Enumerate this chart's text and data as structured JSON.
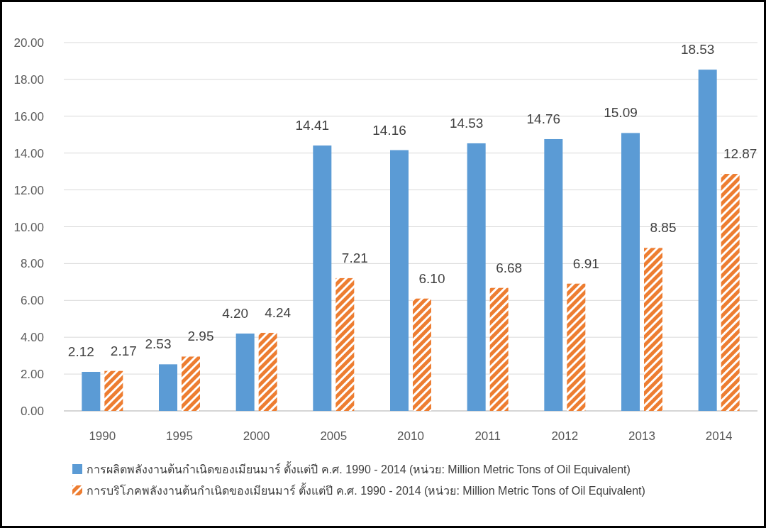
{
  "chart_data": {
    "type": "bar",
    "categories": [
      "1990",
      "1995",
      "2000",
      "2005",
      "2010",
      "2011",
      "2012",
      "2013",
      "2014"
    ],
    "series": [
      {
        "name": "การผลิตพลังงานต้นกำเนิดของเมียนมาร์ ตั้งแต่ปี ค.ศ. 1990 - 2014 (หน่วย: Million Metric Tons of Oil Equivalent)",
        "color": "#5b9bd5",
        "values": [
          2.12,
          2.53,
          4.2,
          14.41,
          14.16,
          14.53,
          14.76,
          15.09,
          18.53
        ],
        "value_labels": [
          "2.12",
          "2.53",
          "4.20",
          "14.41",
          "14.16",
          "14.53",
          "14.76",
          "15.09",
          "18.53"
        ]
      },
      {
        "name": "การบริโภคพลังงานต้นกำเนิดของเมียนมาร์ ตั้งแต่ปี ค.ศ. 1990 - 2014 (หน่วย: Million Metric Tons of Oil Equivalent)",
        "color": "#ed7d31",
        "values": [
          2.17,
          2.95,
          4.24,
          7.21,
          6.1,
          6.68,
          6.91,
          8.85,
          12.87
        ],
        "value_labels": [
          "2.17",
          "2.95",
          "4.24",
          "7.21",
          "6.10",
          "6.68",
          "6.91",
          "8.85",
          "12.87"
        ]
      }
    ],
    "ylim": [
      0,
      20
    ],
    "yticks": [
      {
        "value": 0,
        "label": "0.00"
      },
      {
        "value": 2,
        "label": "2.00"
      },
      {
        "value": 4,
        "label": "4.00"
      },
      {
        "value": 6,
        "label": "6.00"
      },
      {
        "value": 8,
        "label": "8.00"
      },
      {
        "value": 10,
        "label": "10.00"
      },
      {
        "value": 12,
        "label": "12.00"
      },
      {
        "value": 14,
        "label": "14.00"
      },
      {
        "value": 16,
        "label": "16.00"
      },
      {
        "value": 18,
        "label": "18.00"
      },
      {
        "value": 20,
        "label": "20.00"
      }
    ],
    "grid": "y",
    "legend": "bottom"
  }
}
